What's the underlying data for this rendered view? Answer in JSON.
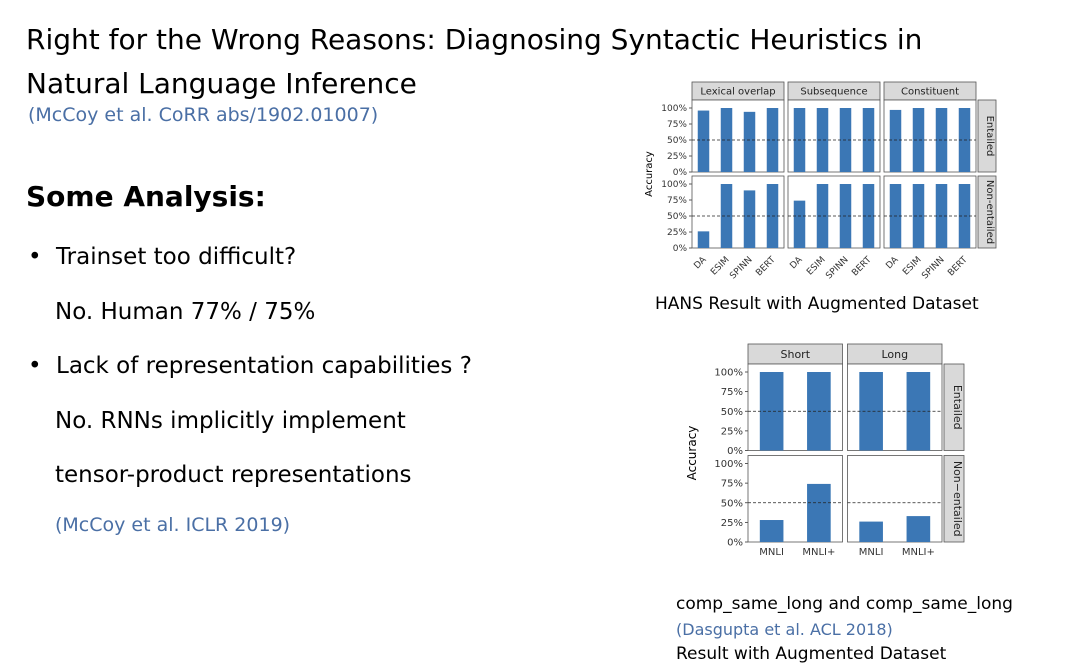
{
  "slide": {
    "title_line1": "Right for the Wrong Reasons: Diagnosing Syntactic Heuristics in",
    "title_line2": "Natural Language Inference",
    "source": "(McCoy et al. CoRR abs/1902.01007)",
    "heading": "Some Analysis:",
    "bullet1": "Trainset too difficult?",
    "bullet1_answer": "No. Human 77% / 75%",
    "bullet2": "Lack of representation capabilities ?",
    "bullet2_answer_line1": "No. RNNs implicitly implement",
    "bullet2_answer_line2": "tensor-product representations",
    "bullet2_source": "(McCoy et al.  ICLR 2019)",
    "caption1": "HANS Result with Augmented Dataset",
    "caption2_line1": "comp_same_long and comp_same_long",
    "caption2_source": "(Dasgupta et al.  ACL 2018)",
    "caption2_line2": "Result with Augmented Dataset"
  },
  "chart_data": [
    {
      "type": "bar",
      "ylabel": "Accuracy",
      "yticks": [
        "0%",
        "25%",
        "50%",
        "75%",
        "100%"
      ],
      "ylim": [
        0,
        1
      ],
      "reference_line": 0.5,
      "column_facets": [
        "Lexical overlap",
        "Subsequence",
        "Constituent"
      ],
      "row_facets": [
        "Entailed",
        "Non-entailed"
      ],
      "categories": [
        "DA",
        "ESIM",
        "SPINN",
        "BERT"
      ],
      "bar_color": "#3b77b5",
      "values": {
        "Entailed": {
          "Lexical overlap": [
            0.96,
            1.0,
            0.94,
            1.0
          ],
          "Subsequence": [
            1.0,
            1.0,
            1.0,
            1.0
          ],
          "Constituent": [
            0.97,
            1.0,
            1.0,
            1.0
          ]
        },
        "Non-entailed": {
          "Lexical overlap": [
            0.26,
            1.0,
            0.9,
            1.0
          ],
          "Subsequence": [
            0.74,
            1.0,
            1.0,
            1.0
          ],
          "Constituent": [
            1.0,
            1.0,
            1.0,
            1.0
          ]
        }
      }
    },
    {
      "type": "bar",
      "ylabel": "Accuracy",
      "yticks": [
        "0%",
        "25%",
        "50%",
        "75%",
        "100%"
      ],
      "ylim": [
        0,
        1
      ],
      "reference_line": 0.5,
      "column_facets": [
        "Short",
        "Long"
      ],
      "row_facets": [
        "Entailed",
        "Non−entailed"
      ],
      "categories": [
        "MNLI",
        "MNLI+"
      ],
      "bar_color": "#3b77b5",
      "values": {
        "Entailed": {
          "Short": [
            1.0,
            1.0
          ],
          "Long": [
            1.0,
            1.0
          ]
        },
        "Non−entailed": {
          "Short": [
            0.28,
            0.74
          ],
          "Long": [
            0.26,
            0.33
          ]
        }
      }
    }
  ]
}
